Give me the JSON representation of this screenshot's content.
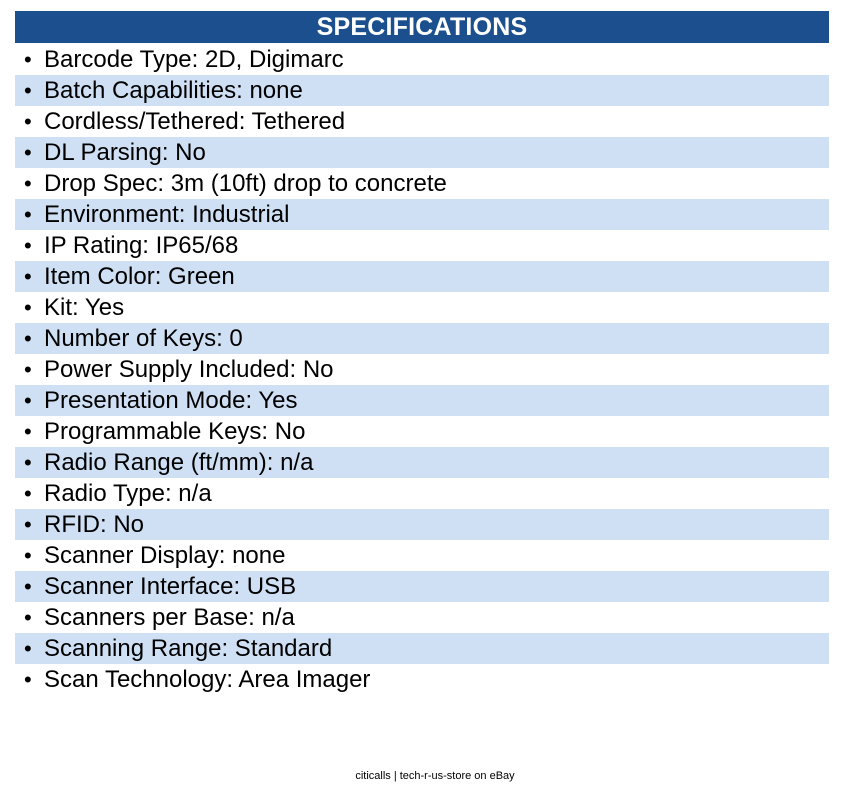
{
  "header": {
    "title": "SPECIFICATIONS"
  },
  "bullet": "•",
  "specs": [
    "Barcode Type: 2D, Digimarc",
    "Batch Capabilities: none",
    "Cordless/Tethered: Tethered",
    "DL Parsing: No",
    "Drop Spec: 3m (10ft) drop to concrete",
    "Environment: Industrial",
    "IP Rating: IP65/68",
    "Item Color: Green",
    "Kit: Yes",
    "Number of Keys: 0",
    "Power Supply Included: No",
    "Presentation Mode: Yes",
    "Programmable Keys: No",
    "Radio Range (ft/mm): n/a",
    "Radio Type: n/a",
    "RFID: No",
    "Scanner Display: none",
    "Scanner Interface: USB",
    "Scanners per Base: n/a",
    "Scanning Range: Standard",
    "Scan Technology: Area Imager"
  ],
  "footer": {
    "text": "citicalls | tech-r-us-store on eBay"
  },
  "colors": {
    "header_bg": "#1c4f8d",
    "stripe_bg": "#cfe0f4"
  }
}
